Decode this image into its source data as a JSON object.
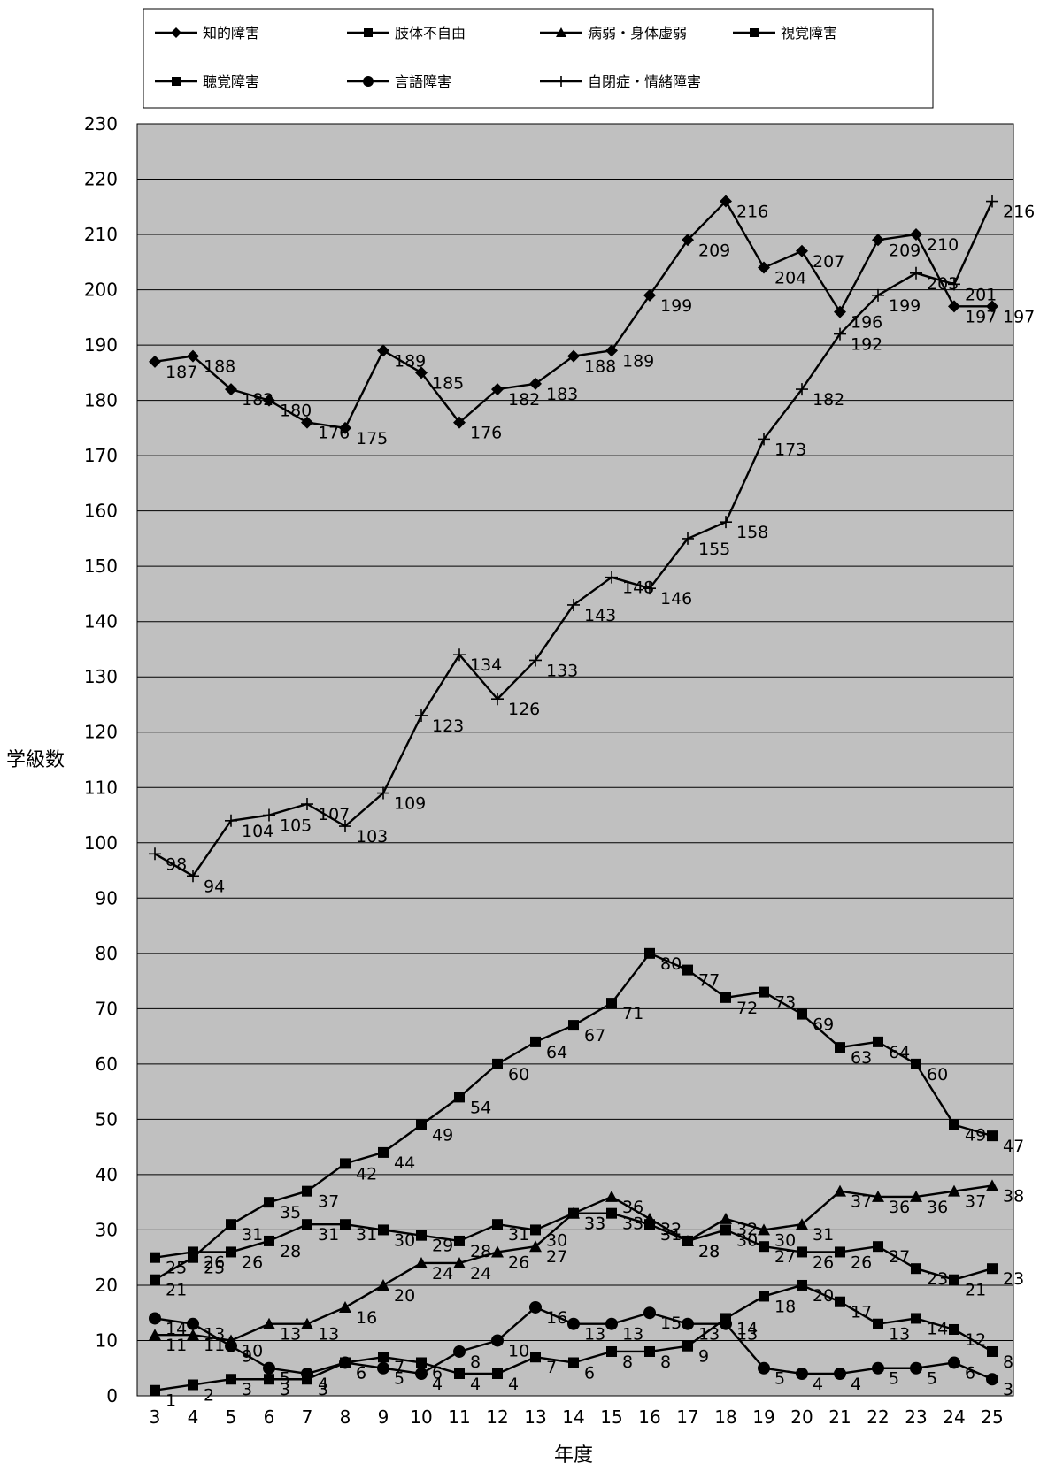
{
  "chart_data": {
    "type": "line",
    "title": "",
    "xlabel": "年度",
    "ylabel": "学級数",
    "x": [
      "3",
      "4",
      "5",
      "6",
      "7",
      "8",
      "9",
      "10",
      "11",
      "12",
      "13",
      "14",
      "15",
      "16",
      "17",
      "18",
      "19",
      "20",
      "21",
      "22",
      "23",
      "24",
      "25"
    ],
    "ylim": [
      0,
      230
    ],
    "yticks": [
      0,
      10,
      20,
      30,
      40,
      50,
      60,
      70,
      80,
      90,
      100,
      110,
      120,
      130,
      140,
      150,
      160,
      170,
      180,
      190,
      200,
      210,
      220,
      230
    ],
    "grid": true,
    "plot_background": "#c0c0c0",
    "legend_position": "top",
    "series": [
      {
        "name": "知的障害",
        "marker": "diamond",
        "values": [
          187,
          188,
          182,
          180,
          176,
          175,
          189,
          185,
          176,
          182,
          183,
          188,
          189,
          199,
          209,
          216,
          204,
          207,
          196,
          209,
          210,
          197,
          197
        ]
      },
      {
        "name": "肢体不自由",
        "marker": "square",
        "values": [
          21,
          25,
          31,
          35,
          37,
          42,
          44,
          49,
          54,
          60,
          64,
          67,
          71,
          80,
          77,
          72,
          73,
          69,
          63,
          64,
          60,
          49,
          47
        ]
      },
      {
        "name": "病弱・身体虚弱",
        "marker": "triangle",
        "values": [
          11,
          11,
          10,
          13,
          13,
          16,
          20,
          24,
          24,
          26,
          27,
          33,
          36,
          32,
          28,
          32,
          30,
          31,
          37,
          36,
          36,
          37,
          38
        ]
      },
      {
        "name": "視覚障害",
        "marker": "square",
        "values": [
          1,
          2,
          3,
          3,
          3,
          6,
          7,
          6,
          4,
          4,
          7,
          6,
          8,
          8,
          9,
          14,
          18,
          20,
          17,
          13,
          14,
          12,
          8
        ]
      },
      {
        "name": "聴覚障害",
        "marker": "square",
        "values": [
          25,
          26,
          26,
          28,
          31,
          31,
          30,
          29,
          28,
          31,
          30,
          33,
          33,
          31,
          28,
          30,
          27,
          26,
          26,
          27,
          23,
          21,
          23
        ]
      },
      {
        "name": "言語障害",
        "marker": "circle",
        "values": [
          14,
          13,
          9,
          5,
          4,
          6,
          5,
          4,
          8,
          10,
          16,
          13,
          13,
          15,
          13,
          13,
          5,
          4,
          4,
          5,
          5,
          6,
          3
        ]
      },
      {
        "name": "自閉症・情緒障害",
        "marker": "plus",
        "values": [
          98,
          94,
          104,
          105,
          107,
          103,
          109,
          123,
          134,
          126,
          133,
          143,
          148,
          146,
          155,
          158,
          173,
          182,
          192,
          199,
          203,
          201,
          216
        ]
      }
    ]
  }
}
